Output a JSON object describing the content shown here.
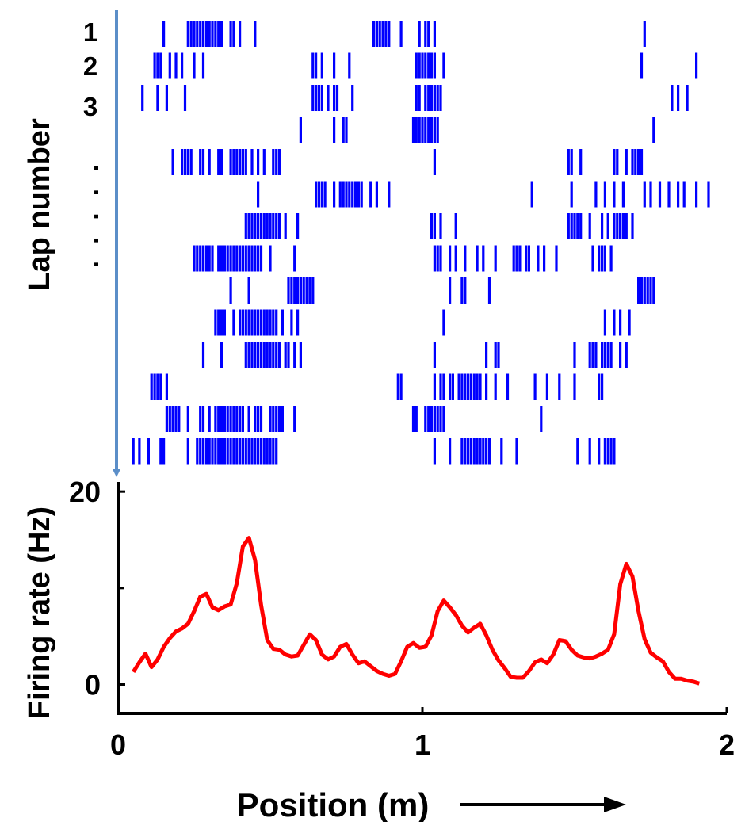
{
  "chart_data": [
    {
      "type": "raster",
      "ylabel": "Lap number",
      "lap_labels": [
        "1",
        "2",
        "3"
      ],
      "ellipsis": ". . . . .",
      "lap_count": 14,
      "x_unit": "m",
      "colors": {
        "spikes": "#0000ff",
        "arrow": "#5b8ec8"
      },
      "laps": [
        [
          0.15,
          0.23,
          0.24,
          0.25,
          0.26,
          0.27,
          0.28,
          0.29,
          0.3,
          0.31,
          0.32,
          0.33,
          0.34,
          0.37,
          0.38,
          0.4,
          0.45,
          0.84,
          0.85,
          0.86,
          0.87,
          0.88,
          0.89,
          0.93,
          0.99,
          1.01,
          1.02,
          1.04,
          1.73
        ],
        [
          0.12,
          0.13,
          0.14,
          0.17,
          0.19,
          0.21,
          0.25,
          0.28,
          0.64,
          0.65,
          0.67,
          0.71,
          0.76,
          0.98,
          0.99,
          1.0,
          1.01,
          1.02,
          1.03,
          1.04,
          1.07,
          1.72,
          1.9
        ],
        [
          0.08,
          0.13,
          0.16,
          0.22,
          0.64,
          0.65,
          0.66,
          0.67,
          0.69,
          0.71,
          0.72,
          0.77,
          0.98,
          0.99,
          1.01,
          1.02,
          1.03,
          1.04,
          1.05,
          1.06,
          1.82,
          1.84,
          1.87
        ],
        [
          0.6,
          0.71,
          0.74,
          0.75,
          0.97,
          0.98,
          0.99,
          1.0,
          1.01,
          1.02,
          1.03,
          1.04,
          1.05,
          1.76
        ],
        [
          0.18,
          0.21,
          0.22,
          0.23,
          0.24,
          0.27,
          0.28,
          0.3,
          0.33,
          0.34,
          0.37,
          0.38,
          0.39,
          0.4,
          0.41,
          0.42,
          0.44,
          0.46,
          0.48,
          0.51,
          0.52,
          0.53,
          1.04,
          1.48,
          1.49,
          1.52,
          1.63,
          1.64,
          1.67,
          1.69,
          1.7,
          1.71,
          1.72
        ],
        [
          0.46,
          0.65,
          0.66,
          0.67,
          0.68,
          0.71,
          0.73,
          0.74,
          0.75,
          0.76,
          0.77,
          0.78,
          0.79,
          0.8,
          0.83,
          0.85,
          0.89,
          1.36,
          1.49,
          1.57,
          1.6,
          1.63,
          1.66,
          1.73,
          1.75,
          1.78,
          1.81,
          1.84,
          1.86,
          1.9,
          1.94
        ],
        [
          0.42,
          0.43,
          0.44,
          0.45,
          0.46,
          0.47,
          0.48,
          0.49,
          0.5,
          0.51,
          0.52,
          0.53,
          0.55,
          0.59,
          1.03,
          1.04,
          1.06,
          1.11,
          1.48,
          1.49,
          1.5,
          1.51,
          1.52,
          1.55,
          1.59,
          1.61,
          1.63,
          1.64,
          1.65,
          1.66,
          1.67,
          1.69
        ],
        [
          0.25,
          0.26,
          0.27,
          0.28,
          0.29,
          0.3,
          0.31,
          0.33,
          0.34,
          0.35,
          0.36,
          0.37,
          0.38,
          0.39,
          0.4,
          0.41,
          0.42,
          0.43,
          0.44,
          0.45,
          0.46,
          0.47,
          0.5,
          0.58,
          1.04,
          1.05,
          1.06,
          1.09,
          1.11,
          1.14,
          1.18,
          1.2,
          1.24,
          1.3,
          1.31,
          1.32,
          1.34,
          1.35,
          1.38,
          1.4,
          1.44,
          1.56,
          1.58,
          1.59,
          1.6,
          1.62
        ],
        [
          0.37,
          0.43,
          0.56,
          0.57,
          0.58,
          0.59,
          0.6,
          0.61,
          0.62,
          0.63,
          0.64,
          1.09,
          1.13,
          1.14,
          1.22,
          1.71,
          1.72,
          1.73,
          1.74,
          1.75,
          1.76
        ],
        [
          0.32,
          0.33,
          0.34,
          0.35,
          0.38,
          0.4,
          0.41,
          0.42,
          0.43,
          0.44,
          0.45,
          0.46,
          0.47,
          0.48,
          0.49,
          0.5,
          0.51,
          0.52,
          0.54,
          0.57,
          0.59,
          1.07,
          1.6,
          1.63,
          1.65,
          1.68
        ],
        [
          0.28,
          0.34,
          0.42,
          0.43,
          0.44,
          0.45,
          0.46,
          0.47,
          0.48,
          0.49,
          0.5,
          0.51,
          0.52,
          0.53,
          0.55,
          0.56,
          0.58,
          0.6,
          1.04,
          1.21,
          1.24,
          1.25,
          1.5,
          1.55,
          1.56,
          1.57,
          1.59,
          1.6,
          1.61,
          1.62,
          1.65,
          1.67
        ],
        [
          0.11,
          0.12,
          0.13,
          0.14,
          0.16,
          0.92,
          0.93,
          1.04,
          1.06,
          1.07,
          1.09,
          1.1,
          1.12,
          1.13,
          1.14,
          1.15,
          1.16,
          1.17,
          1.18,
          1.19,
          1.21,
          1.24,
          1.28,
          1.37,
          1.41,
          1.45,
          1.5,
          1.58,
          1.59
        ],
        [
          0.16,
          0.17,
          0.18,
          0.19,
          0.2,
          0.23,
          0.27,
          0.28,
          0.3,
          0.32,
          0.33,
          0.34,
          0.35,
          0.36,
          0.37,
          0.38,
          0.39,
          0.4,
          0.41,
          0.43,
          0.45,
          0.46,
          0.47,
          0.5,
          0.51,
          0.52,
          0.53,
          0.54,
          0.58,
          0.97,
          0.98,
          1.01,
          1.02,
          1.03,
          1.04,
          1.05,
          1.06,
          1.07,
          1.39
        ],
        [
          0.05,
          0.07,
          0.1,
          0.14,
          0.15,
          0.23,
          0.26,
          0.27,
          0.28,
          0.29,
          0.3,
          0.31,
          0.32,
          0.33,
          0.34,
          0.35,
          0.36,
          0.37,
          0.38,
          0.39,
          0.4,
          0.41,
          0.42,
          0.43,
          0.44,
          0.45,
          0.46,
          0.47,
          0.48,
          0.49,
          0.5,
          0.51,
          0.52,
          1.04,
          1.09,
          1.13,
          1.14,
          1.15,
          1.16,
          1.17,
          1.18,
          1.19,
          1.2,
          1.21,
          1.22,
          1.26,
          1.31,
          1.51,
          1.55,
          1.58,
          1.6,
          1.61,
          1.62,
          1.63
        ]
      ]
    },
    {
      "type": "line",
      "xlabel": "Position (m)",
      "ylabel": "Firing rate (Hz)",
      "xlim": [
        0,
        2
      ],
      "ylim": [
        -3,
        21
      ],
      "xticks": [
        "0",
        "1",
        "2"
      ],
      "yticks": [
        "0",
        "20"
      ],
      "yticks_minor": [
        10
      ],
      "grid": false,
      "colors": {
        "line": "#ff0000",
        "axes": "#000000"
      },
      "x": [
        0.05,
        0.07,
        0.09,
        0.11,
        0.13,
        0.15,
        0.17,
        0.19,
        0.21,
        0.23,
        0.25,
        0.27,
        0.29,
        0.31,
        0.33,
        0.35,
        0.37,
        0.39,
        0.41,
        0.43,
        0.45,
        0.47,
        0.49,
        0.51,
        0.53,
        0.55,
        0.57,
        0.59,
        0.61,
        0.63,
        0.65,
        0.67,
        0.69,
        0.71,
        0.73,
        0.75,
        0.77,
        0.79,
        0.81,
        0.83,
        0.85,
        0.87,
        0.89,
        0.91,
        0.93,
        0.95,
        0.97,
        0.99,
        1.01,
        1.03,
        1.05,
        1.07,
        1.09,
        1.11,
        1.13,
        1.15,
        1.17,
        1.19,
        1.21,
        1.23,
        1.25,
        1.27,
        1.29,
        1.31,
        1.33,
        1.35,
        1.37,
        1.39,
        1.41,
        1.43,
        1.45,
        1.47,
        1.49,
        1.51,
        1.53,
        1.55,
        1.57,
        1.59,
        1.61,
        1.63,
        1.65,
        1.67,
        1.69,
        1.71,
        1.73,
        1.75,
        1.77,
        1.79,
        1.81,
        1.83,
        1.85,
        1.87,
        1.89,
        1.91
      ],
      "y": [
        1.3,
        2.3,
        3.2,
        1.8,
        2.6,
        3.9,
        4.8,
        5.5,
        5.8,
        6.3,
        7.6,
        9.1,
        9.4,
        8.0,
        7.7,
        8.1,
        8.3,
        10.5,
        14.3,
        15.2,
        12.9,
        8.2,
        4.6,
        3.7,
        3.6,
        3.1,
        2.9,
        3.0,
        4.1,
        5.2,
        4.6,
        3.1,
        2.6,
        2.9,
        3.9,
        4.2,
        3.1,
        2.2,
        2.4,
        1.9,
        1.4,
        1.1,
        0.9,
        1.1,
        2.4,
        3.9,
        4.3,
        3.8,
        3.9,
        5.1,
        7.6,
        8.7,
        8.0,
        7.2,
        6.1,
        5.4,
        5.9,
        6.3,
        5.1,
        3.6,
        2.5,
        1.7,
        0.8,
        0.7,
        0.7,
        1.4,
        2.3,
        2.6,
        2.2,
        3.1,
        4.6,
        4.5,
        3.6,
        3.0,
        2.8,
        2.7,
        2.9,
        3.2,
        3.6,
        5.2,
        10.4,
        12.5,
        11.2,
        7.6,
        4.7,
        3.3,
        2.8,
        2.4,
        1.3,
        0.6,
        0.6,
        0.4,
        0.3,
        0.1
      ]
    }
  ]
}
